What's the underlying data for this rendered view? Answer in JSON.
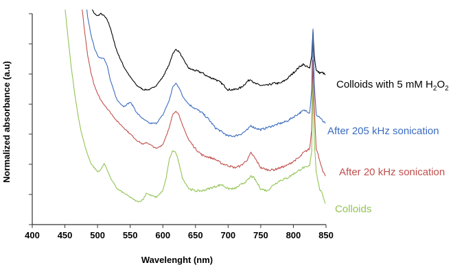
{
  "chart_data": {
    "type": "line",
    "title": "",
    "xlabel": "Wavelenght (nm)",
    "ylabel": "Normalized absorbance (a.u)",
    "xlim": [
      400,
      850
    ],
    "ylim": [
      0,
      1
    ],
    "x_ticks": [
      400,
      450,
      500,
      550,
      600,
      650,
      700,
      750,
      800,
      850
    ],
    "y_ticks": [
      0.0,
      0.143,
      0.286,
      0.429,
      0.571,
      0.714,
      0.857,
      1.0
    ],
    "y_tick_labels_shown": false,
    "grid": false,
    "legend": "none (inline labels at right of each series)",
    "series": [
      {
        "name": "Colloids with 5 mM H2O2",
        "label_main": "Colloids with 5 mM H",
        "label_sub1": "2",
        "label_mid": "O",
        "label_sub2": "2",
        "color": "#000000",
        "x": [
          485,
          490,
          495,
          500,
          505,
          510,
          515,
          520,
          525,
          530,
          540,
          550,
          560,
          570,
          580,
          590,
          600,
          610,
          615,
          620,
          625,
          630,
          640,
          650,
          660,
          670,
          680,
          690,
          700,
          710,
          720,
          730,
          735,
          740,
          750,
          760,
          770,
          780,
          790,
          800,
          810,
          815,
          820,
          825,
          828,
          830,
          832,
          835,
          840,
          845,
          849
        ],
        "y": [
          1.06,
          1.03,
          1.0,
          0.99,
          1.0,
          0.99,
          0.97,
          0.93,
          0.87,
          0.82,
          0.75,
          0.7,
          0.66,
          0.64,
          0.64,
          0.66,
          0.7,
          0.76,
          0.81,
          0.83,
          0.82,
          0.79,
          0.74,
          0.73,
          0.72,
          0.7,
          0.69,
          0.67,
          0.64,
          0.64,
          0.65,
          0.68,
          0.69,
          0.67,
          0.66,
          0.66,
          0.67,
          0.67,
          0.69,
          0.72,
          0.75,
          0.76,
          0.75,
          0.74,
          0.8,
          0.92,
          0.8,
          0.73,
          0.72,
          0.72,
          0.71
        ]
      },
      {
        "name": "After 205 kHz sonication",
        "color": "#3a6bbf",
        "x": [
          482,
          485,
          490,
          495,
          500,
          505,
          510,
          515,
          520,
          530,
          540,
          545,
          550,
          555,
          560,
          570,
          580,
          590,
          600,
          610,
          615,
          620,
          625,
          630,
          640,
          650,
          660,
          670,
          680,
          690,
          700,
          710,
          720,
          730,
          735,
          740,
          750,
          760,
          770,
          780,
          790,
          800,
          810,
          815,
          820,
          825,
          828,
          830,
          832,
          835,
          840,
          845,
          849
        ],
        "y": [
          1.06,
          0.98,
          0.9,
          0.84,
          0.8,
          0.79,
          0.79,
          0.75,
          0.68,
          0.59,
          0.56,
          0.57,
          0.58,
          0.56,
          0.53,
          0.5,
          0.48,
          0.48,
          0.52,
          0.59,
          0.65,
          0.67,
          0.65,
          0.61,
          0.57,
          0.55,
          0.53,
          0.5,
          0.46,
          0.44,
          0.42,
          0.42,
          0.43,
          0.45,
          0.47,
          0.46,
          0.45,
          0.46,
          0.47,
          0.48,
          0.49,
          0.51,
          0.53,
          0.54,
          0.54,
          0.53,
          0.64,
          0.93,
          0.66,
          0.52,
          0.51,
          0.49,
          0.48
        ]
      },
      {
        "name": "After 20 kHz sonication",
        "color": "#c0504d",
        "x": [
          475,
          480,
          485,
          490,
          495,
          500,
          505,
          510,
          515,
          520,
          530,
          540,
          550,
          560,
          570,
          575,
          580,
          590,
          600,
          610,
          615,
          620,
          625,
          630,
          640,
          650,
          660,
          670,
          680,
          690,
          700,
          710,
          720,
          730,
          735,
          740,
          750,
          760,
          770,
          780,
          790,
          800,
          810,
          815,
          820,
          825,
          828,
          830,
          832,
          835,
          840,
          845,
          849
        ],
        "y": [
          1.06,
          0.92,
          0.8,
          0.72,
          0.66,
          0.62,
          0.59,
          0.57,
          0.55,
          0.53,
          0.49,
          0.46,
          0.43,
          0.4,
          0.38,
          0.39,
          0.38,
          0.36,
          0.38,
          0.46,
          0.52,
          0.54,
          0.52,
          0.47,
          0.4,
          0.36,
          0.33,
          0.32,
          0.31,
          0.29,
          0.28,
          0.27,
          0.28,
          0.31,
          0.34,
          0.32,
          0.27,
          0.26,
          0.26,
          0.27,
          0.28,
          0.3,
          0.32,
          0.34,
          0.35,
          0.36,
          0.45,
          0.78,
          0.56,
          0.36,
          0.31,
          0.25,
          0.23
        ]
      },
      {
        "name": "Colloids",
        "color": "#92c353",
        "x": [
          449,
          455,
          460,
          465,
          470,
          475,
          480,
          485,
          490,
          495,
          500,
          505,
          510,
          515,
          520,
          530,
          540,
          550,
          560,
          565,
          570,
          575,
          580,
          590,
          600,
          605,
          610,
          615,
          620,
          625,
          630,
          640,
          650,
          660,
          670,
          680,
          690,
          700,
          710,
          720,
          730,
          735,
          740,
          750,
          760,
          770,
          780,
          790,
          800,
          810,
          815,
          820,
          825,
          828,
          830,
          832,
          835,
          840,
          845,
          849
        ],
        "y": [
          1.06,
          0.88,
          0.74,
          0.62,
          0.52,
          0.44,
          0.38,
          0.33,
          0.29,
          0.27,
          0.25,
          0.26,
          0.29,
          0.26,
          0.22,
          0.17,
          0.15,
          0.13,
          0.11,
          0.11,
          0.12,
          0.15,
          0.14,
          0.13,
          0.16,
          0.22,
          0.31,
          0.35,
          0.34,
          0.29,
          0.22,
          0.17,
          0.16,
          0.16,
          0.17,
          0.18,
          0.19,
          0.17,
          0.17,
          0.19,
          0.21,
          0.23,
          0.22,
          0.17,
          0.16,
          0.19,
          0.21,
          0.22,
          0.24,
          0.26,
          0.27,
          0.27,
          0.28,
          0.35,
          0.67,
          0.4,
          0.25,
          0.17,
          0.14,
          0.1
        ]
      }
    ]
  }
}
